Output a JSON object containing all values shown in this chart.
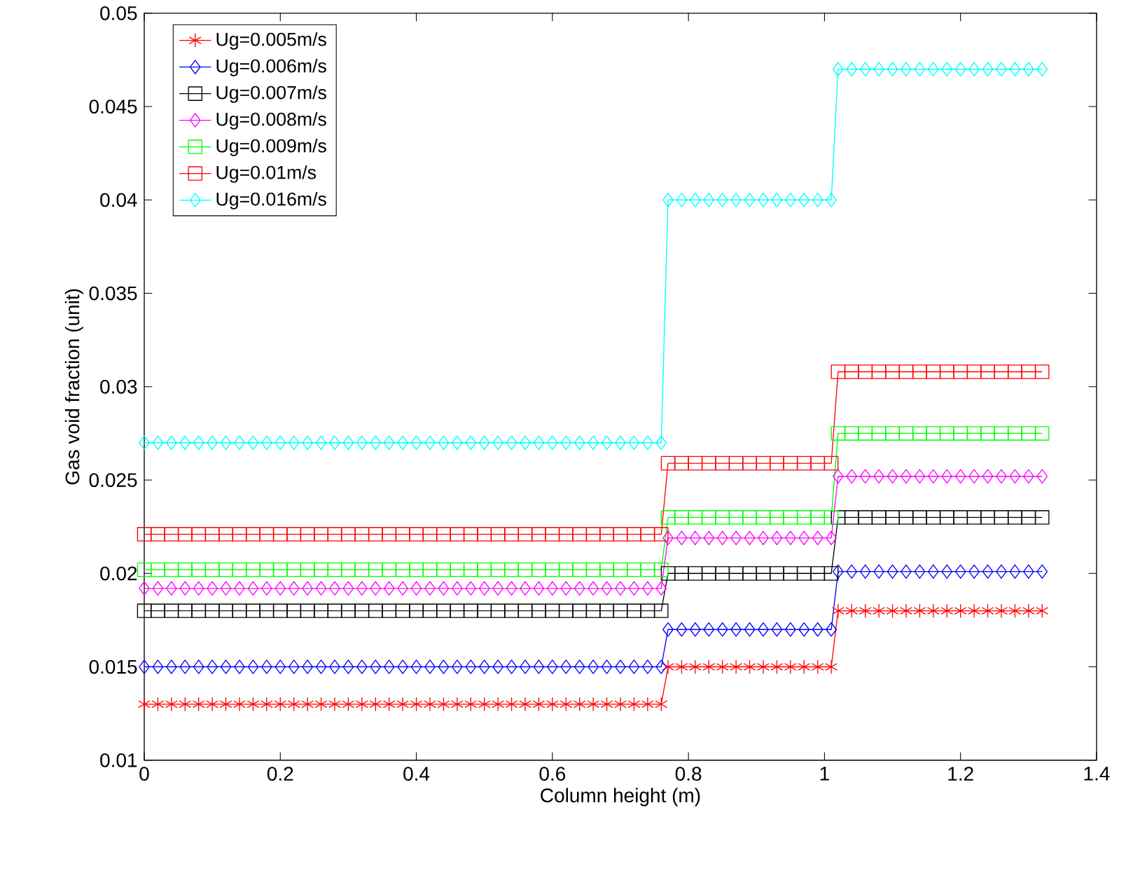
{
  "chart_data": {
    "type": "line",
    "xlabel": "Column height (m)",
    "ylabel": "Gas void fraction (unit)",
    "xlim": [
      0,
      1.4
    ],
    "ylim": [
      0.01,
      0.05
    ],
    "xticks": [
      0,
      0.2,
      0.4,
      0.6,
      0.8,
      1,
      1.2,
      1.4
    ],
    "yticks": [
      0.01,
      0.015,
      0.02,
      0.025,
      0.03,
      0.035,
      0.04,
      0.045,
      0.05
    ],
    "legend": "top left",
    "grid": false,
    "line_style": "solid",
    "x": [
      0,
      0.02,
      0.04,
      0.06,
      0.08,
      0.1,
      0.12,
      0.14,
      0.16,
      0.18,
      0.2,
      0.22,
      0.24,
      0.26,
      0.28,
      0.3,
      0.32,
      0.34,
      0.36,
      0.38,
      0.4,
      0.42,
      0.44,
      0.46,
      0.48,
      0.5,
      0.52,
      0.54,
      0.56,
      0.58,
      0.6,
      0.62,
      0.64,
      0.66,
      0.68,
      0.7,
      0.72,
      0.74,
      0.76,
      0.77,
      0.79,
      0.81,
      0.83,
      0.85,
      0.87,
      0.89,
      0.91,
      0.93,
      0.95,
      0.97,
      0.99,
      1.01,
      1.02,
      1.04,
      1.06,
      1.08,
      1.1,
      1.12,
      1.14,
      1.16,
      1.18,
      1.2,
      1.22,
      1.24,
      1.26,
      1.28,
      1.3,
      1.32
    ],
    "series": [
      {
        "name": "Ug=0.005m/s",
        "color": "#ff0000",
        "marker": "cross",
        "values": [
          0.013,
          0.013,
          0.013,
          0.013,
          0.013,
          0.013,
          0.013,
          0.013,
          0.013,
          0.013,
          0.013,
          0.013,
          0.013,
          0.013,
          0.013,
          0.013,
          0.013,
          0.013,
          0.013,
          0.013,
          0.013,
          0.013,
          0.013,
          0.013,
          0.013,
          0.013,
          0.013,
          0.013,
          0.013,
          0.013,
          0.013,
          0.013,
          0.013,
          0.013,
          0.013,
          0.013,
          0.013,
          0.013,
          0.013,
          0.015,
          0.015,
          0.015,
          0.015,
          0.015,
          0.015,
          0.015,
          0.015,
          0.015,
          0.015,
          0.015,
          0.015,
          0.015,
          0.018,
          0.018,
          0.018,
          0.018,
          0.018,
          0.018,
          0.018,
          0.018,
          0.018,
          0.018,
          0.018,
          0.018,
          0.018,
          0.018,
          0.018,
          0.018
        ]
      },
      {
        "name": "Ug=0.006m/s",
        "color": "#0000ff",
        "marker": "diamond",
        "values": [
          0.015,
          0.015,
          0.015,
          0.015,
          0.015,
          0.015,
          0.015,
          0.015,
          0.015,
          0.015,
          0.015,
          0.015,
          0.015,
          0.015,
          0.015,
          0.015,
          0.015,
          0.015,
          0.015,
          0.015,
          0.015,
          0.015,
          0.015,
          0.015,
          0.015,
          0.015,
          0.015,
          0.015,
          0.015,
          0.015,
          0.015,
          0.015,
          0.015,
          0.015,
          0.015,
          0.015,
          0.015,
          0.015,
          0.015,
          0.017,
          0.017,
          0.017,
          0.017,
          0.017,
          0.017,
          0.017,
          0.017,
          0.017,
          0.017,
          0.017,
          0.017,
          0.017,
          0.0201,
          0.0201,
          0.0201,
          0.0201,
          0.0201,
          0.0201,
          0.0201,
          0.0201,
          0.0201,
          0.0201,
          0.0201,
          0.0201,
          0.0201,
          0.0201,
          0.0201,
          0.0201
        ]
      },
      {
        "name": "Ug=0.007m/s",
        "color": "#000000",
        "marker": "square",
        "values": [
          0.018,
          0.018,
          0.018,
          0.018,
          0.018,
          0.018,
          0.018,
          0.018,
          0.018,
          0.018,
          0.018,
          0.018,
          0.018,
          0.018,
          0.018,
          0.018,
          0.018,
          0.018,
          0.018,
          0.018,
          0.018,
          0.018,
          0.018,
          0.018,
          0.018,
          0.018,
          0.018,
          0.018,
          0.018,
          0.018,
          0.018,
          0.018,
          0.018,
          0.018,
          0.018,
          0.018,
          0.018,
          0.018,
          0.018,
          0.02,
          0.02,
          0.02,
          0.02,
          0.02,
          0.02,
          0.02,
          0.02,
          0.02,
          0.02,
          0.02,
          0.02,
          0.02,
          0.023,
          0.023,
          0.023,
          0.023,
          0.023,
          0.023,
          0.023,
          0.023,
          0.023,
          0.023,
          0.023,
          0.023,
          0.023,
          0.023,
          0.023,
          0.023
        ]
      },
      {
        "name": "Ug=0.008m/s",
        "color": "#ff00ff",
        "marker": "diamond",
        "values": [
          0.0192,
          0.0192,
          0.0192,
          0.0192,
          0.0192,
          0.0192,
          0.0192,
          0.0192,
          0.0192,
          0.0192,
          0.0192,
          0.0192,
          0.0192,
          0.0192,
          0.0192,
          0.0192,
          0.0192,
          0.0192,
          0.0192,
          0.0192,
          0.0192,
          0.0192,
          0.0192,
          0.0192,
          0.0192,
          0.0192,
          0.0192,
          0.0192,
          0.0192,
          0.0192,
          0.0192,
          0.0192,
          0.0192,
          0.0192,
          0.0192,
          0.0192,
          0.0192,
          0.0192,
          0.0192,
          0.0219,
          0.0219,
          0.0219,
          0.0219,
          0.0219,
          0.0219,
          0.0219,
          0.0219,
          0.0219,
          0.0219,
          0.0219,
          0.0219,
          0.0219,
          0.0252,
          0.0252,
          0.0252,
          0.0252,
          0.0252,
          0.0252,
          0.0252,
          0.0252,
          0.0252,
          0.0252,
          0.0252,
          0.0252,
          0.0252,
          0.0252,
          0.0252,
          0.0252
        ]
      },
      {
        "name": "Ug=0.009m/s",
        "color": "#00ff00",
        "marker": "square",
        "values": [
          0.0202,
          0.0202,
          0.0202,
          0.0202,
          0.0202,
          0.0202,
          0.0202,
          0.0202,
          0.0202,
          0.0202,
          0.0202,
          0.0202,
          0.0202,
          0.0202,
          0.0202,
          0.0202,
          0.0202,
          0.0202,
          0.0202,
          0.0202,
          0.0202,
          0.0202,
          0.0202,
          0.0202,
          0.0202,
          0.0202,
          0.0202,
          0.0202,
          0.0202,
          0.0202,
          0.0202,
          0.0202,
          0.0202,
          0.0202,
          0.0202,
          0.0202,
          0.0202,
          0.0202,
          0.0202,
          0.023,
          0.023,
          0.023,
          0.023,
          0.023,
          0.023,
          0.023,
          0.023,
          0.023,
          0.023,
          0.023,
          0.023,
          0.023,
          0.0275,
          0.0275,
          0.0275,
          0.0275,
          0.0275,
          0.0275,
          0.0275,
          0.0275,
          0.0275,
          0.0275,
          0.0275,
          0.0275,
          0.0275,
          0.0275,
          0.0275,
          0.0275
        ]
      },
      {
        "name": "Ug=0.01m/s",
        "color": "#ff0000",
        "marker": "square",
        "values": [
          0.0221,
          0.0221,
          0.0221,
          0.0221,
          0.0221,
          0.0221,
          0.0221,
          0.0221,
          0.0221,
          0.0221,
          0.0221,
          0.0221,
          0.0221,
          0.0221,
          0.0221,
          0.0221,
          0.0221,
          0.0221,
          0.0221,
          0.0221,
          0.0221,
          0.0221,
          0.0221,
          0.0221,
          0.0221,
          0.0221,
          0.0221,
          0.0221,
          0.0221,
          0.0221,
          0.0221,
          0.0221,
          0.0221,
          0.0221,
          0.0221,
          0.0221,
          0.0221,
          0.0221,
          0.0221,
          0.0259,
          0.0259,
          0.0259,
          0.0259,
          0.0259,
          0.0259,
          0.0259,
          0.0259,
          0.0259,
          0.0259,
          0.0259,
          0.0259,
          0.0259,
          0.0308,
          0.0308,
          0.0308,
          0.0308,
          0.0308,
          0.0308,
          0.0308,
          0.0308,
          0.0308,
          0.0308,
          0.0308,
          0.0308,
          0.0308,
          0.0308,
          0.0308,
          0.0308
        ]
      },
      {
        "name": "Ug=0.016m/s",
        "color": "#00ffff",
        "marker": "diamond",
        "values": [
          0.027,
          0.027,
          0.027,
          0.027,
          0.027,
          0.027,
          0.027,
          0.027,
          0.027,
          0.027,
          0.027,
          0.027,
          0.027,
          0.027,
          0.027,
          0.027,
          0.027,
          0.027,
          0.027,
          0.027,
          0.027,
          0.027,
          0.027,
          0.027,
          0.027,
          0.027,
          0.027,
          0.027,
          0.027,
          0.027,
          0.027,
          0.027,
          0.027,
          0.027,
          0.027,
          0.027,
          0.027,
          0.027,
          0.027,
          0.04,
          0.04,
          0.04,
          0.04,
          0.04,
          0.04,
          0.04,
          0.04,
          0.04,
          0.04,
          0.04,
          0.04,
          0.04,
          0.047,
          0.047,
          0.047,
          0.047,
          0.047,
          0.047,
          0.047,
          0.047,
          0.047,
          0.047,
          0.047,
          0.047,
          0.047,
          0.047,
          0.047,
          0.047
        ]
      }
    ]
  }
}
